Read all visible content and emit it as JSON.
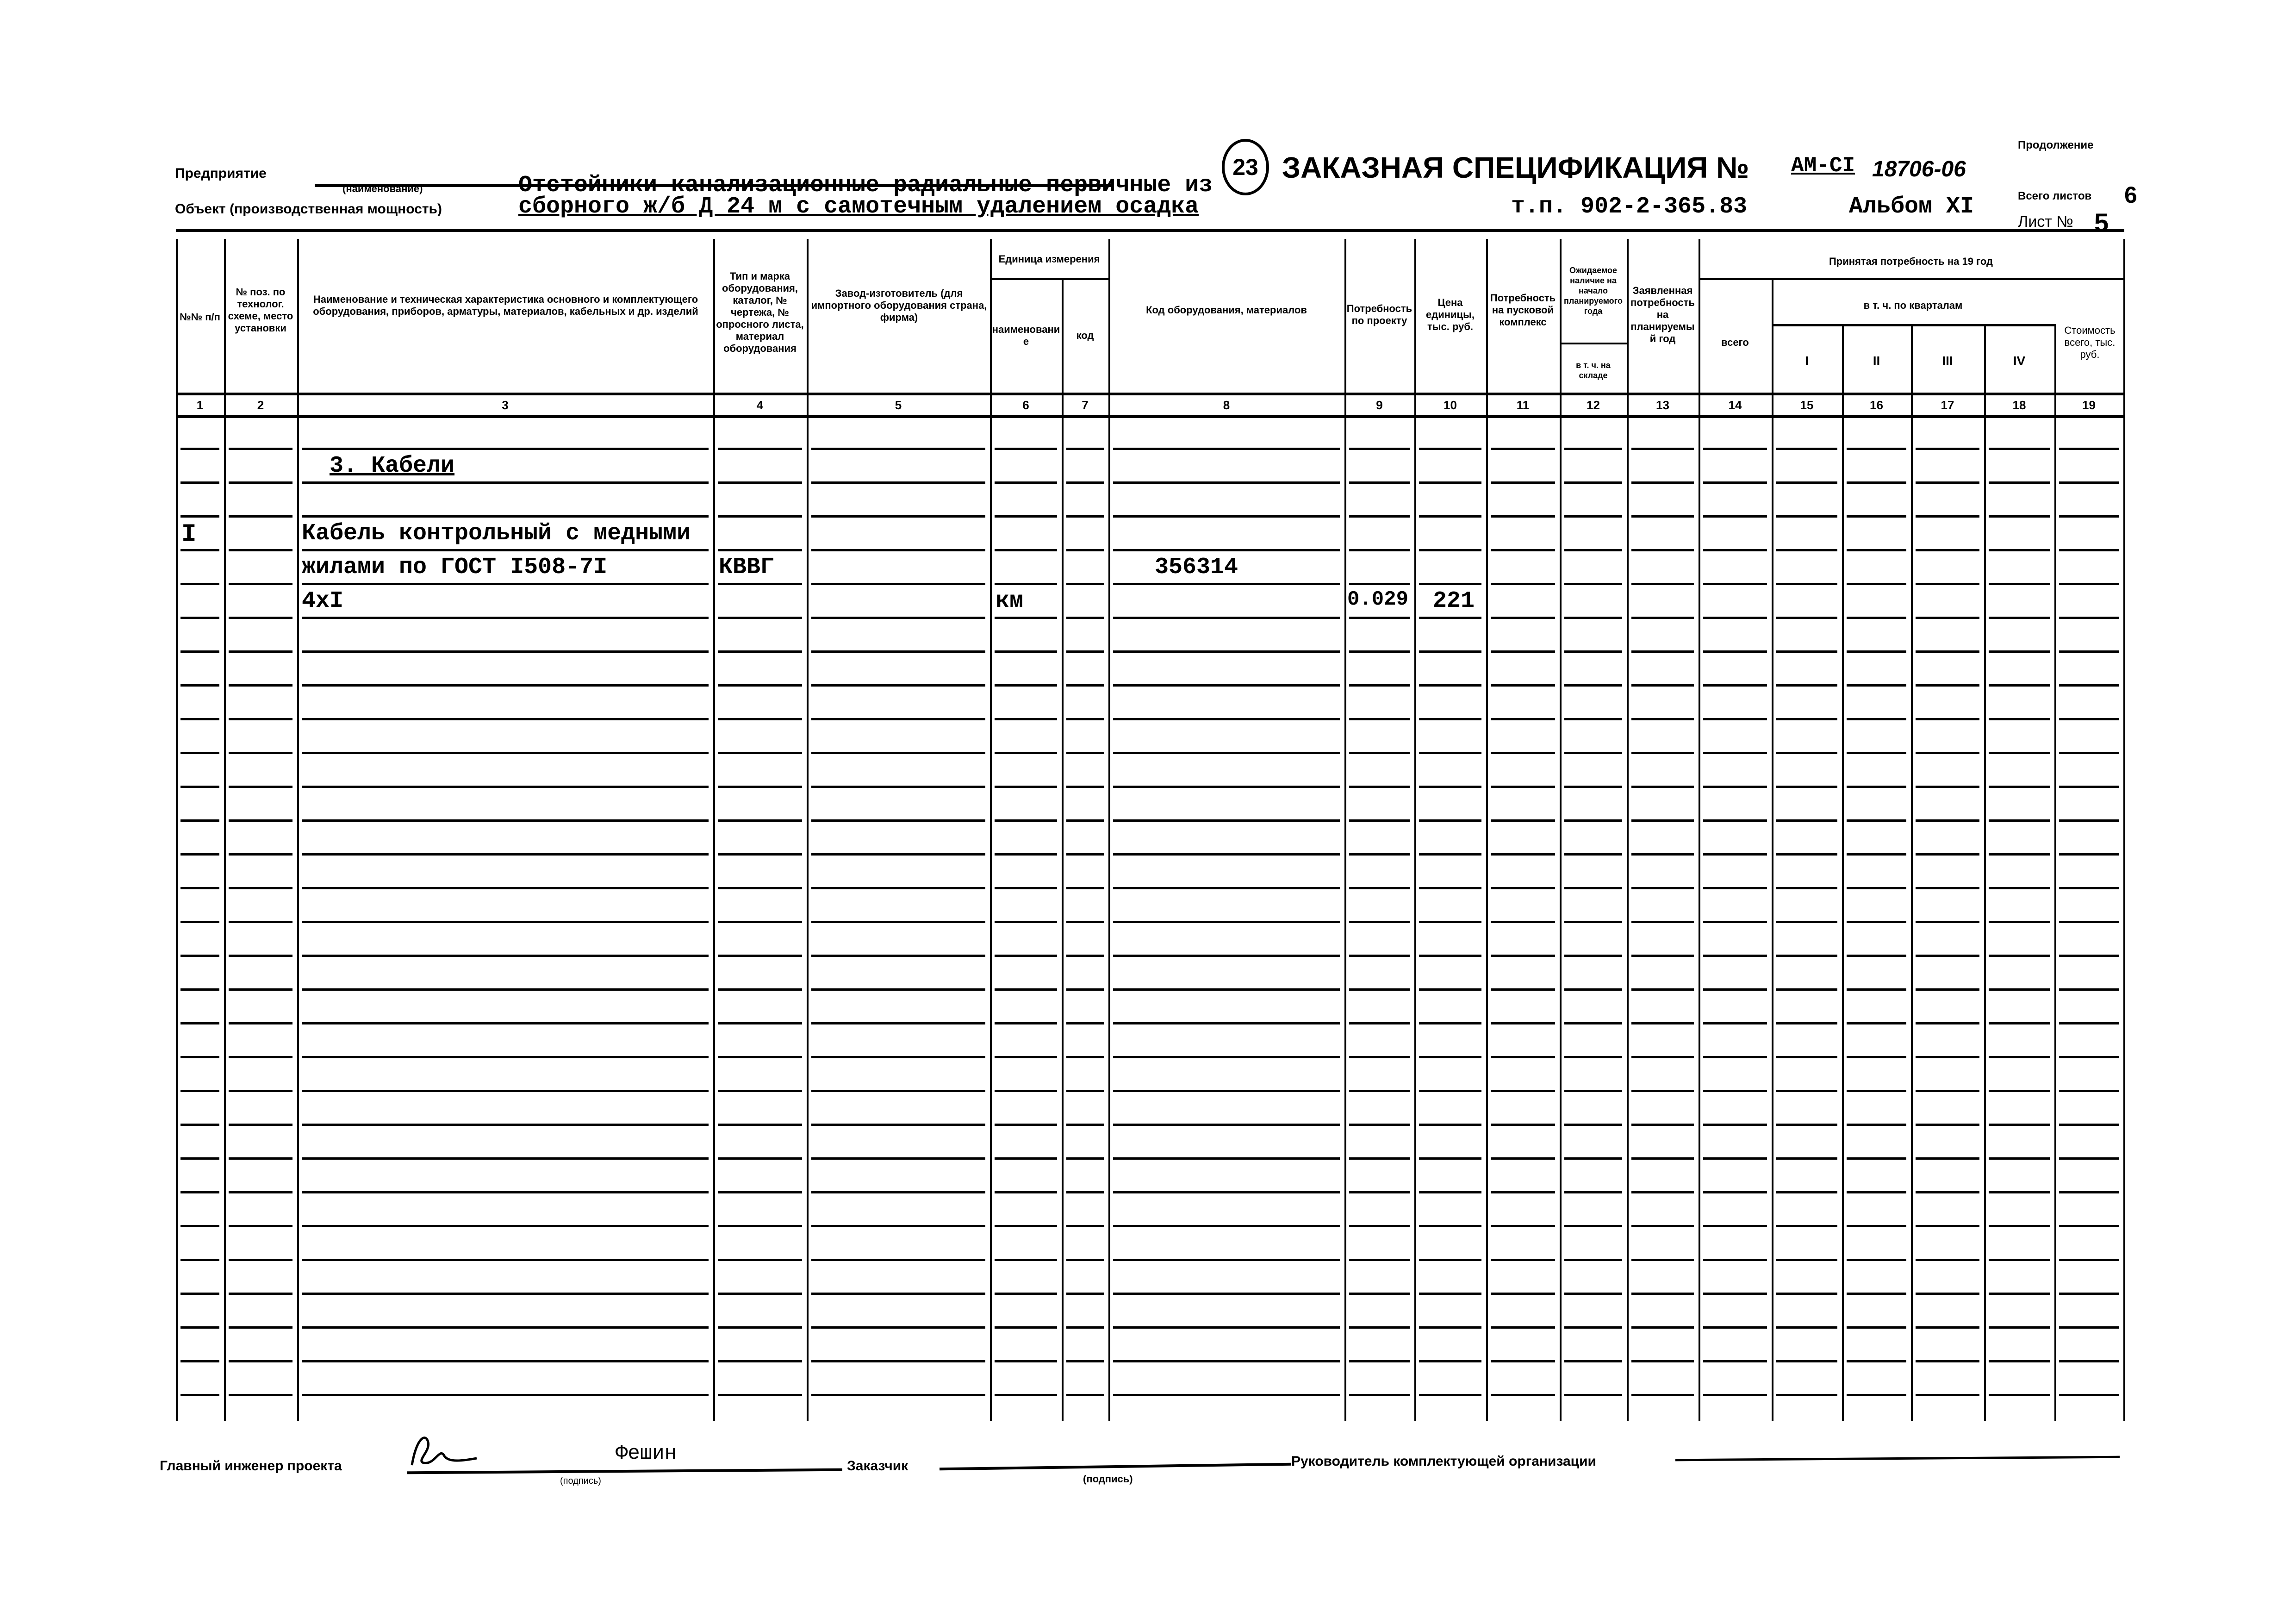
{
  "header": {
    "enterprise_label": "Предприятие",
    "name_caption": "(наименование)",
    "object_label": "Объект (производственная мощность)",
    "object_line1": "Отстойники канализационные радиальные первичные из",
    "object_line2": "сборного ж/б Д 24 м с самотечным удалением осадка",
    "circle_number": "23",
    "title": "ЗАКАЗНАЯ СПЕЦИФИКАЦИЯ №",
    "spec_number": "АМ-СI",
    "handwritten_number": "18706-06",
    "tp": "т.п. 902-2-365.83",
    "album": "Альбом XI",
    "continuation_label": "Продолжение",
    "total_sheets_label": "Всего листов",
    "total_sheets_value": "6",
    "sheet_label": "Лист №",
    "sheet_value": "5"
  },
  "columns": {
    "c1": "№№ п/п",
    "c2": "№ поз. по технолог. схеме, место установки",
    "c3": "Наименование и техническая характеристика основного и комплектующего оборудования, приборов, арматуры, материалов, кабельных и др. изделий",
    "c4": "Тип и марка оборудования, каталог, № чертежа, № опросного листа, материал оборудования",
    "c5": "Завод-изготовитель (для импортного оборудования страна, фирма)",
    "unit_group": "Единица измерения",
    "c6": "наименование",
    "c7": "код",
    "c8": "Код оборудования, материалов",
    "c9": "Потребность по проекту",
    "c10": "Цена единицы, тыс. руб.",
    "c11": "Потребность на пусковой комплекс",
    "c12_top": "Ожидаемое наличие на начало планируемого года",
    "c12_bottom": "в т. ч. на складе",
    "c13": "Заявленная потребность на планируемый год",
    "accepted_group": "Принятая потребность на 19   год",
    "c14": "всего",
    "quarters_group": "в т. ч. по кварталам",
    "c15": "I",
    "c16": "II",
    "c17": "III",
    "c18": "IV",
    "c19": "Стоимость всего, тыс. руб.",
    "numbers": [
      "1",
      "2",
      "3",
      "4",
      "5",
      "6",
      "7",
      "8",
      "9",
      "10",
      "11",
      "12",
      "13",
      "14",
      "15",
      "16",
      "17",
      "18",
      "19"
    ]
  },
  "rows": [
    {
      "c3": "3. Кабели"
    },
    {},
    {
      "c1": "I",
      "c3": "Кабель контрольный с медными"
    },
    {
      "c3": "жилами по ГОСТ I508-7I",
      "c4": "КВВГ",
      "c8": "356314"
    },
    {
      "c3": "4xI",
      "c6": "км",
      "c9": "0.029",
      "c10": "221"
    }
  ],
  "footer": {
    "chief_engineer_label": "Главный инженер проекта",
    "chief_engineer_name": "Фешин",
    "signature_caption": "(подпись)",
    "customer_label": "Заказчик",
    "customer_caption": "(подпись)",
    "supplier_head_label": "Руководитель комплектующей организации"
  }
}
